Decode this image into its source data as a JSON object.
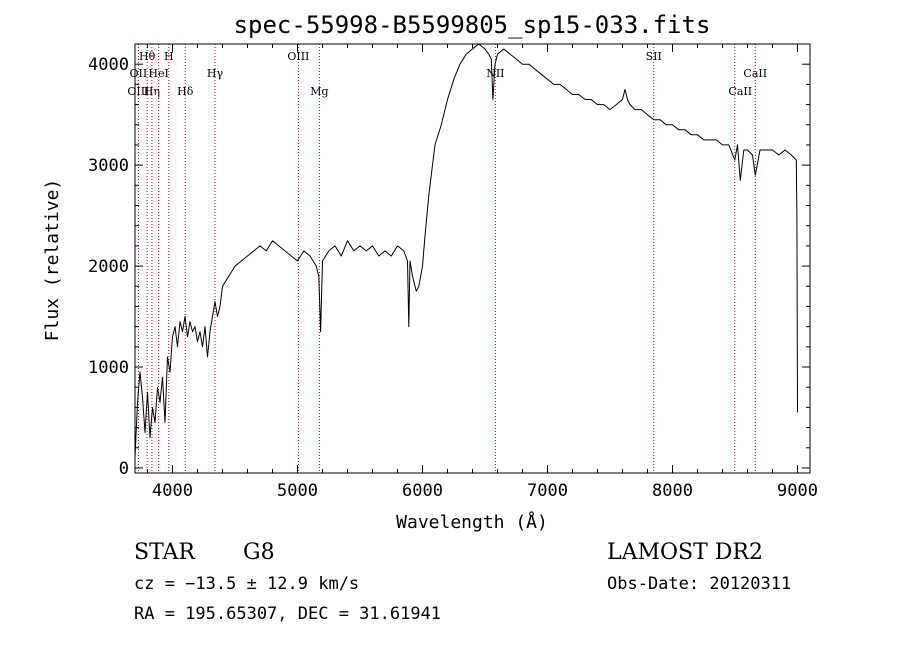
{
  "chart_data": {
    "type": "line",
    "title": "spec-55998-B5599805_sp15-033.fits",
    "xlabel": "Wavelength (Å)",
    "ylabel": "Flux (relative)",
    "xlim": [
      3700,
      9100
    ],
    "ylim": [
      -50,
      4200
    ],
    "x_ticks": [
      4000,
      5000,
      6000,
      7000,
      8000,
      9000
    ],
    "y_ticks": [
      0,
      1000,
      2000,
      3000,
      4000
    ],
    "grid": false,
    "series": [
      {
        "color": "#000000",
        "x": [
          3700,
          3720,
          3740,
          3760,
          3780,
          3800,
          3820,
          3840,
          3860,
          3880,
          3900,
          3920,
          3940,
          3960,
          3980,
          4000,
          4020,
          4040,
          4060,
          4080,
          4100,
          4120,
          4140,
          4160,
          4180,
          4200,
          4220,
          4240,
          4260,
          4280,
          4300,
          4320,
          4340,
          4360,
          4380,
          4400,
          4450,
          4500,
          4550,
          4600,
          4650,
          4700,
          4750,
          4800,
          4850,
          4900,
          4950,
          5000,
          5050,
          5100,
          5150,
          5170,
          5185,
          5200,
          5250,
          5300,
          5350,
          5400,
          5450,
          5500,
          5550,
          5600,
          5650,
          5700,
          5750,
          5800,
          5850,
          5880,
          5890,
          5900,
          5920,
          5950,
          5970,
          6000,
          6020,
          6050,
          6080,
          6100,
          6150,
          6200,
          6250,
          6300,
          6350,
          6400,
          6450,
          6500,
          6530,
          6550,
          6563,
          6580,
          6600,
          6650,
          6700,
          6750,
          6800,
          6850,
          6900,
          6950,
          7000,
          7050,
          7100,
          7150,
          7200,
          7250,
          7300,
          7350,
          7400,
          7450,
          7500,
          7550,
          7600,
          7620,
          7640,
          7660,
          7700,
          7750,
          7800,
          7850,
          7900,
          7950,
          8000,
          8050,
          8100,
          8150,
          8200,
          8250,
          8300,
          8350,
          8400,
          8450,
          8498,
          8520,
          8542,
          8570,
          8600,
          8640,
          8662,
          8700,
          8750,
          8800,
          8850,
          8900,
          8950,
          8990,
          8995,
          9000
        ],
        "y": [
          100,
          650,
          950,
          700,
          350,
          750,
          300,
          600,
          450,
          800,
          650,
          900,
          450,
          1100,
          950,
          1300,
          1400,
          1200,
          1450,
          1350,
          1500,
          1300,
          1450,
          1350,
          1400,
          1250,
          1350,
          1200,
          1400,
          1100,
          1350,
          1500,
          1650,
          1500,
          1600,
          1800,
          1900,
          2000,
          2050,
          2100,
          2150,
          2200,
          2150,
          2250,
          2200,
          2150,
          2100,
          2050,
          2150,
          2100,
          2000,
          1900,
          1350,
          2050,
          2150,
          2200,
          2100,
          2250,
          2150,
          2200,
          2150,
          2200,
          2100,
          2150,
          2100,
          2200,
          2150,
          2050,
          1400,
          2050,
          1900,
          1750,
          1800,
          2000,
          2300,
          2700,
          3000,
          3200,
          3400,
          3650,
          3850,
          4000,
          4100,
          4150,
          4200,
          4150,
          4100,
          4050,
          3650,
          4000,
          4100,
          4150,
          4100,
          4050,
          4000,
          4000,
          3950,
          3900,
          3850,
          3800,
          3800,
          3750,
          3700,
          3700,
          3650,
          3650,
          3600,
          3600,
          3550,
          3600,
          3650,
          3750,
          3650,
          3600,
          3550,
          3550,
          3500,
          3450,
          3450,
          3400,
          3400,
          3350,
          3350,
          3300,
          3300,
          3250,
          3250,
          3250,
          3200,
          3200,
          3050,
          3200,
          2850,
          3150,
          3150,
          3100,
          2900,
          3150,
          3150,
          3150,
          3100,
          3150,
          3100,
          3050,
          2500,
          550
        ]
      }
    ],
    "line_labels": [
      {
        "label": "Hθ",
        "x": 3797,
        "row": 0
      },
      {
        "label": "H",
        "x": 3970,
        "row": 0
      },
      {
        "label": "OII",
        "x": 3727,
        "row": 1
      },
      {
        "label": "HeI",
        "x": 3889,
        "row": 1
      },
      {
        "label": "OIII",
        "x": 3727,
        "row": 2
      },
      {
        "label": "Hη",
        "x": 3835,
        "row": 2
      },
      {
        "label": "Hδ",
        "x": 4102,
        "row": 2
      },
      {
        "label": "Hγ",
        "x": 4340,
        "row": 1
      },
      {
        "label": "OIII",
        "x": 5007,
        "row": 0
      },
      {
        "label": "Mg",
        "x": 5175,
        "row": 2
      },
      {
        "label": "NII",
        "x": 6583,
        "row": 1
      },
      {
        "label": "SII",
        "x": 7850,
        "row": 0
      },
      {
        "label": "CaII",
        "x": 8542,
        "row": 2
      },
      {
        "label": "CaII",
        "x": 8662,
        "row": 1
      }
    ],
    "line_markers": [
      3727,
      3797,
      3835,
      3889,
      3970,
      4102,
      4340,
      5007,
      5175,
      6583,
      7850,
      8498,
      8662
    ],
    "marker_color": "#cc0000"
  },
  "info": {
    "object_type": "STAR",
    "subclass": "G8",
    "survey": "LAMOST DR2",
    "redshift": "cz = −13.5 ± 12.9 km/s",
    "obs_date": "Obs-Date: 20120311",
    "coords": "RA = 195.65307, DEC =  31.61941"
  }
}
